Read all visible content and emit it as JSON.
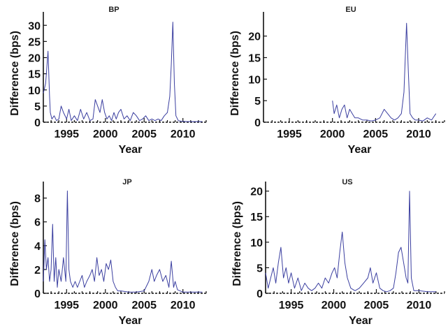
{
  "chart_data": [
    {
      "type": "line",
      "title": "BP",
      "xlabel": "Year",
      "ylabel": "Difference (bps)",
      "xlim": [
        1992,
        2013
      ],
      "ylim": [
        0,
        32
      ],
      "xticks": [
        1995,
        2000,
        2005,
        2010
      ],
      "yticks": [
        0,
        5,
        10,
        15,
        20,
        25,
        30
      ],
      "grid": false,
      "series": [
        {
          "color": "#3b3fa0",
          "x": [
            1992.0,
            1992.3,
            1992.6,
            1992.8,
            1992.9,
            1993.1,
            1993.4,
            1993.7,
            1994.0,
            1994.3,
            1994.6,
            1995.0,
            1995.3,
            1995.6,
            1996.0,
            1996.4,
            1996.8,
            1997.2,
            1997.6,
            1998.0,
            1998.4,
            1998.7,
            1999.0,
            1999.3,
            1999.6,
            1999.9,
            2000.2,
            2000.5,
            2000.8,
            2001.1,
            2001.4,
            2001.7,
            2002.0,
            2002.4,
            2002.8,
            2003.2,
            2003.6,
            2004.0,
            2004.4,
            2004.8,
            2005.2,
            2005.6,
            2006.0,
            2006.4,
            2006.8,
            2007.2,
            2007.6,
            2008.0,
            2008.3,
            2008.5,
            2008.7,
            2008.9,
            2009.1,
            2009.4,
            2009.8,
            2010.5,
            2011.5,
            2012.5
          ],
          "values": [
            9,
            12,
            22,
            8,
            3,
            1,
            2,
            0.5,
            1,
            5,
            3,
            1,
            4,
            0.5,
            2,
            0.5,
            4,
            1,
            3,
            0.5,
            1,
            7,
            5,
            3,
            7,
            3,
            1,
            2,
            0.5,
            3,
            1,
            3,
            4,
            1,
            2,
            0.5,
            3,
            2,
            0.5,
            1,
            2,
            0.5,
            1,
            0.5,
            1,
            0.5,
            2,
            3,
            8,
            18,
            31,
            12,
            2,
            0.5,
            0.3,
            0.2,
            0.2,
            0.2
          ]
        }
      ]
    },
    {
      "type": "line",
      "title": "EU",
      "xlabel": "Year",
      "ylabel": "Difference (bps)",
      "xlim": [
        1992,
        2013
      ],
      "ylim": [
        0,
        24
      ],
      "xticks": [
        1995,
        2000,
        2005,
        2010
      ],
      "yticks": [
        0,
        5,
        10,
        15,
        20
      ],
      "grid": false,
      "series": [
        {
          "color": "#3b3fa0",
          "x": [
            2000.0,
            2000.2,
            2000.5,
            2000.8,
            2001.1,
            2001.4,
            2001.7,
            2002.0,
            2002.3,
            2002.6,
            2003.0,
            2003.5,
            2004.0,
            2004.5,
            2005.0,
            2005.5,
            2006.0,
            2006.4,
            2006.8,
            2007.2,
            2007.6,
            2008.0,
            2008.3,
            2008.6,
            2008.8,
            2009.0,
            2009.3,
            2009.6,
            2010.0,
            2010.5,
            2011.0,
            2011.5,
            2012.0
          ],
          "values": [
            5,
            2,
            4,
            1,
            3,
            4,
            1,
            3,
            2,
            1,
            1,
            0.5,
            0.5,
            0.3,
            0.5,
            1,
            3,
            2,
            1,
            0.5,
            1,
            2,
            7,
            23,
            12,
            2,
            1,
            0.5,
            0.5,
            0.3,
            1,
            0.5,
            2
          ]
        }
      ]
    },
    {
      "type": "line",
      "title": "JP",
      "xlabel": "Year",
      "ylabel": "Difference (bps)",
      "xlim": [
        1992,
        2013
      ],
      "ylim": [
        0,
        8.8
      ],
      "xticks": [
        1995,
        2000,
        2005,
        2010
      ],
      "yticks": [
        0,
        2,
        4,
        6,
        8
      ],
      "grid": false,
      "series": [
        {
          "color": "#3b3fa0",
          "x": [
            1992.0,
            1992.2,
            1992.4,
            1992.6,
            1992.8,
            1993.0,
            1993.2,
            1993.4,
            1993.6,
            1993.8,
            1994.0,
            1994.3,
            1994.6,
            1994.9,
            1995.1,
            1995.3,
            1995.5,
            1995.8,
            1996.1,
            1996.4,
            1996.7,
            1997.0,
            1997.3,
            1997.6,
            1998.0,
            1998.3,
            1998.6,
            1998.9,
            1999.2,
            1999.5,
            1999.8,
            2000.1,
            2000.4,
            2000.7,
            2001.0,
            2001.3,
            2001.6,
            2002.0,
            2003.0,
            2004.0,
            2005.0,
            2005.6,
            2006.0,
            2006.3,
            2006.6,
            2007.0,
            2007.4,
            2007.8,
            2008.2,
            2008.5,
            2008.8,
            2009.0,
            2009.3,
            2010.0,
            2011.0,
            2012.5
          ],
          "values": [
            1,
            4.5,
            2,
            3,
            1,
            2,
            5.8,
            1,
            3,
            0.5,
            2,
            1,
            3,
            1,
            8.6,
            2,
            1,
            0.5,
            1,
            0.5,
            1,
            1.5,
            0.5,
            1,
            1.5,
            2,
            1,
            3,
            1.5,
            2,
            1,
            2.5,
            2,
            2.8,
            1,
            0.5,
            0.2,
            0.2,
            0.1,
            0.1,
            0.2,
            1,
            2,
            1,
            1.5,
            2,
            1,
            1.5,
            0.5,
            2.7,
            0.5,
            1,
            0.3,
            0.1,
            0.1,
            0.1
          ]
        }
      ]
    },
    {
      "type": "line",
      "title": "US",
      "xlabel": "Year",
      "ylabel": "Difference (bps)",
      "xlim": [
        1992,
        2013
      ],
      "ylim": [
        0,
        20.5
      ],
      "xticks": [
        1995,
        2000,
        2005,
        2010
      ],
      "yticks": [
        0,
        5,
        10,
        15,
        20
      ],
      "grid": false,
      "series": [
        {
          "color": "#3b3fa0",
          "x": [
            1992.0,
            1992.3,
            1992.6,
            1992.9,
            1993.2,
            1993.5,
            1993.8,
            1994.1,
            1994.4,
            1994.7,
            1995.0,
            1995.4,
            1995.8,
            1996.2,
            1996.6,
            1997.0,
            1997.4,
            1997.8,
            1998.2,
            1998.6,
            1999.0,
            1999.4,
            1999.8,
            2000.1,
            2000.4,
            2000.7,
            2001.0,
            2001.3,
            2001.6,
            2002.0,
            2002.5,
            2003.0,
            2003.5,
            2004.0,
            2004.3,
            2004.6,
            2005.0,
            2005.4,
            2005.8,
            2006.2,
            2006.6,
            2007.0,
            2007.3,
            2007.6,
            2007.9,
            2008.2,
            2008.5,
            2008.7,
            2008.9,
            2009.1,
            2009.4,
            2010.0,
            2011.0,
            2012.0
          ],
          "values": [
            4,
            1,
            3,
            5,
            2,
            6,
            9,
            3,
            5,
            2,
            4,
            1,
            3,
            0.5,
            2,
            1,
            0.5,
            1,
            2,
            1,
            3,
            2,
            4,
            5,
            3,
            8,
            12,
            6,
            3,
            1,
            0.5,
            1,
            2,
            3,
            5,
            2,
            4,
            1,
            0.5,
            0.3,
            0.5,
            1,
            4,
            8,
            9,
            6,
            3,
            2,
            20,
            3,
            0.5,
            0.5,
            0.3,
            0.3
          ]
        }
      ]
    }
  ]
}
